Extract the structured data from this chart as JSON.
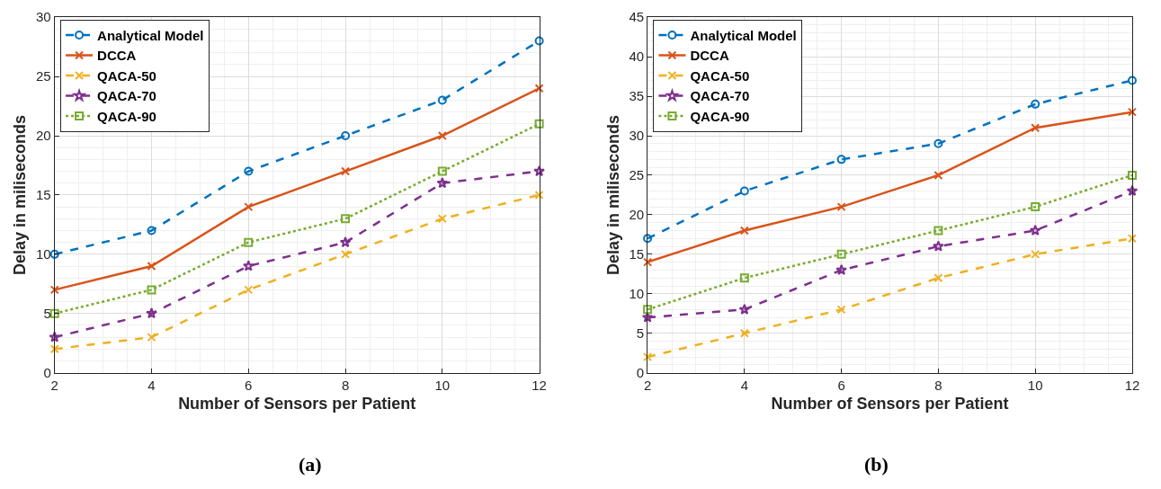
{
  "chart_data": [
    {
      "type": "line",
      "xlabel": "Number of Sensors per Patient",
      "ylabel": "Delay in miliseconds",
      "x": [
        2,
        4,
        6,
        8,
        10,
        12
      ],
      "xlim": [
        2,
        12
      ],
      "xticks": [
        2,
        4,
        6,
        8,
        10,
        12
      ],
      "ylim": [
        0,
        30
      ],
      "yticks": [
        0,
        5,
        10,
        15,
        20,
        25,
        30
      ],
      "grid": true,
      "legend": "top left",
      "annotations": [
        "(a)"
      ],
      "series": [
        {
          "name": "Analytical Model",
          "color": "#0072bd",
          "marker": "circle",
          "line_style": "dashed",
          "values": [
            10,
            12,
            17,
            20,
            23,
            28
          ]
        },
        {
          "name": "DCCA",
          "color": "#d95319",
          "marker": "cross",
          "line_style": "solid",
          "values": [
            7,
            9,
            14,
            17,
            20,
            24
          ]
        },
        {
          "name": "QACA-50",
          "color": "#edb120",
          "marker": "cross",
          "line_style": "dashed",
          "values": [
            2,
            3,
            7,
            10,
            13,
            15
          ]
        },
        {
          "name": "QACA-70",
          "color": "#7e2f8e",
          "marker": "star",
          "line_style": "dashed",
          "values": [
            3,
            5,
            9,
            11,
            16,
            17
          ]
        },
        {
          "name": "QACA-90",
          "color": "#77ac30",
          "marker": "square",
          "line_style": "dotted",
          "values": [
            5,
            7,
            11,
            13,
            17,
            21
          ]
        }
      ]
    },
    {
      "type": "line",
      "xlabel": "Number of Sensors per Patient",
      "ylabel": "Delay in miliseconds",
      "x": [
        2,
        4,
        6,
        8,
        10,
        12
      ],
      "xlim": [
        2,
        12
      ],
      "xticks": [
        2,
        4,
        6,
        8,
        10,
        12
      ],
      "ylim": [
        0,
        45
      ],
      "yticks": [
        0,
        5,
        10,
        15,
        20,
        25,
        30,
        35,
        40,
        45
      ],
      "grid": true,
      "legend": "top left",
      "annotations": [
        "(b)"
      ],
      "series": [
        {
          "name": "Analytical Model",
          "color": "#0072bd",
          "marker": "circle",
          "line_style": "dashed",
          "values": [
            17,
            23,
            27,
            29,
            34,
            37
          ]
        },
        {
          "name": "DCCA",
          "color": "#d95319",
          "marker": "cross",
          "line_style": "solid",
          "values": [
            14,
            18,
            21,
            25,
            31,
            33
          ]
        },
        {
          "name": "QACA-50",
          "color": "#edb120",
          "marker": "cross",
          "line_style": "dashed",
          "values": [
            2,
            5,
            8,
            12,
            15,
            17
          ]
        },
        {
          "name": "QACA-70",
          "color": "#7e2f8e",
          "marker": "star",
          "line_style": "dashed",
          "values": [
            7,
            8,
            13,
            16,
            18,
            23
          ]
        },
        {
          "name": "QACA-90",
          "color": "#77ac30",
          "marker": "square",
          "line_style": "dotted",
          "values": [
            8,
            12,
            15,
            18,
            21,
            25
          ]
        }
      ]
    }
  ]
}
